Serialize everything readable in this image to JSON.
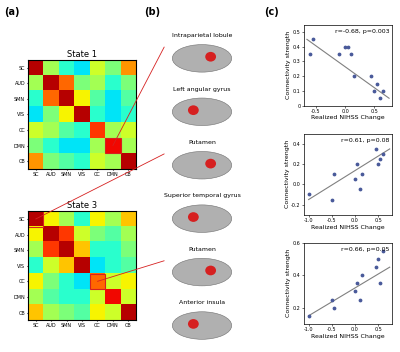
{
  "panel_labels": [
    "(a)",
    "(b)",
    "(c)"
  ],
  "brain_regions": [
    "Intraparietal lobule",
    "Left angular gyrus",
    "Putamen",
    "Superior temporal gyrus",
    "Putamen",
    "Anterior insula"
  ],
  "chart_data": [
    {
      "type": "heatmap",
      "title": "State 1",
      "categories": [
        "SC",
        "AUD",
        "SMN",
        "VIS",
        "CC",
        "DMN",
        "CB"
      ],
      "color_range": [
        -1,
        1
      ],
      "cells": [
        [
          0.9,
          0.1,
          -0.2,
          -0.3,
          0.2,
          0.0,
          0.5
        ],
        [
          0.1,
          0.9,
          0.6,
          0.0,
          0.1,
          -0.2,
          0.0
        ],
        [
          -0.2,
          0.6,
          0.9,
          0.3,
          -0.1,
          -0.3,
          -0.1
        ],
        [
          -0.3,
          0.0,
          0.3,
          0.9,
          -0.2,
          -0.3,
          -0.2
        ],
        [
          0.2,
          0.1,
          -0.1,
          -0.2,
          0.7,
          0.1,
          0.2
        ],
        [
          0.0,
          -0.2,
          -0.3,
          -0.3,
          0.1,
          0.8,
          0.1
        ],
        [
          0.5,
          0.0,
          -0.1,
          -0.2,
          0.2,
          0.1,
          0.9
        ]
      ]
    },
    {
      "type": "heatmap",
      "title": "State 3",
      "categories": [
        "SC",
        "AUD",
        "SMN",
        "VIS",
        "CC",
        "DMN",
        "CB"
      ],
      "color_range": [
        -1,
        1
      ],
      "cells": [
        [
          0.9,
          0.3,
          0.1,
          -0.2,
          0.3,
          0.1,
          0.4
        ],
        [
          0.3,
          0.9,
          0.7,
          0.2,
          0.0,
          -0.1,
          0.1
        ],
        [
          0.1,
          0.7,
          0.9,
          0.4,
          -0.2,
          -0.2,
          0.0
        ],
        [
          -0.2,
          0.2,
          0.4,
          0.9,
          -0.3,
          -0.2,
          -0.1
        ],
        [
          0.3,
          0.0,
          -0.2,
          -0.3,
          0.6,
          0.2,
          0.3
        ],
        [
          0.1,
          -0.1,
          -0.2,
          -0.2,
          0.2,
          0.8,
          0.2
        ],
        [
          0.4,
          0.1,
          0.0,
          -0.1,
          0.3,
          0.2,
          0.9
        ]
      ]
    },
    {
      "type": "scatter",
      "annotation": "r=-0.68, p=0.003",
      "x_label": "Realized NIHSS Change",
      "y_label": "Connectivity strength",
      "x": [
        -0.6,
        -0.55,
        -0.1,
        0.0,
        0.05,
        0.1,
        0.15,
        0.45,
        0.5,
        0.55,
        0.6,
        0.65
      ],
      "values": [
        0.35,
        0.45,
        0.35,
        0.4,
        0.4,
        0.35,
        0.2,
        0.2,
        0.1,
        0.15,
        0.05,
        0.1
      ],
      "fit": {
        "x": [
          -0.65,
          0.75
        ],
        "values": [
          0.45,
          0.05
        ]
      },
      "color": "#4a5a9a",
      "xlim": [
        -0.7,
        0.8
      ],
      "xticks": [
        -0.5,
        0.0,
        0.5
      ],
      "ylim": [
        0,
        0.55
      ],
      "yticks": [
        0,
        0.1,
        0.2,
        0.3,
        0.4,
        0.5
      ]
    },
    {
      "type": "scatter",
      "annotation": "r=0.61, p=0.08",
      "x_label": "Realized NIHSS Change",
      "y_label": "Connectivity strength",
      "x": [
        -1.0,
        -0.5,
        -0.45,
        0.0,
        0.05,
        0.1,
        0.15,
        0.45,
        0.5,
        0.55,
        0.6
      ],
      "values": [
        -0.1,
        -0.15,
        0.1,
        0.05,
        0.2,
        -0.05,
        0.1,
        0.35,
        0.2,
        0.25,
        0.3
      ],
      "fit": {
        "x": [
          -1.0,
          0.75
        ],
        "values": [
          -0.15,
          0.35
        ]
      },
      "color": "#4a5a9a",
      "xlim": [
        -1.1,
        0.8
      ],
      "xticks": [
        -1.0,
        -0.5,
        0.0,
        0.5
      ],
      "ylim": [
        -0.3,
        0.5
      ],
      "yticks": [
        -0.2,
        0.0,
        0.2,
        0.4
      ]
    },
    {
      "type": "scatter",
      "annotation": "r=0.66, p=0.05",
      "x_label": "Realized NIHSS Change",
      "y_label": "Connectivity strength",
      "x": [
        -1.0,
        -0.5,
        -0.45,
        0.0,
        0.05,
        0.1,
        0.15,
        0.45,
        0.5,
        0.55,
        0.6
      ],
      "values": [
        0.15,
        0.25,
        0.2,
        0.3,
        0.35,
        0.25,
        0.4,
        0.45,
        0.5,
        0.35,
        0.55
      ],
      "fit": {
        "x": [
          -1.0,
          0.75
        ],
        "values": [
          0.15,
          0.45
        ]
      },
      "color": "#4a5a9a",
      "xlim": [
        -1.1,
        0.8
      ],
      "xticks": [
        -1.0,
        -0.5,
        0.0,
        0.5
      ],
      "ylim": [
        0.1,
        0.6
      ],
      "yticks": [
        0.2,
        0.4,
        0.6
      ]
    }
  ]
}
